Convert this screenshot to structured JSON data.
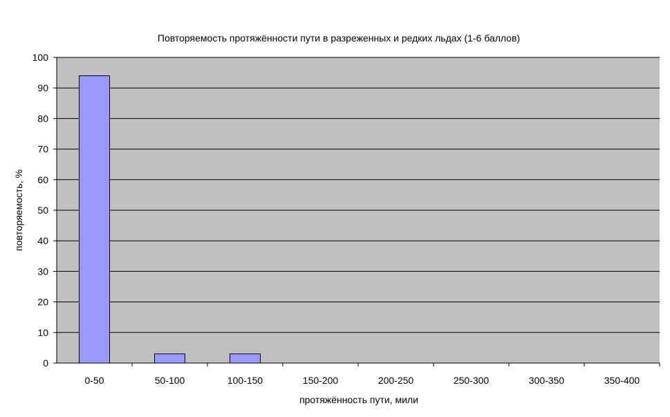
{
  "chart_data": {
    "type": "bar",
    "title": "Повторяемость протяжённости пути в разреженных и редких льдах (1-6 баллов)",
    "xlabel": "протяжённость пути, мили",
    "ylabel": "повторяемость, %",
    "categories": [
      "0-50",
      "50-100",
      "100-150",
      "150-200",
      "200-250",
      "250-300",
      "300-350",
      "350-400"
    ],
    "values": [
      94,
      3,
      3,
      0,
      0,
      0,
      0,
      0
    ],
    "ylim": [
      0,
      100
    ],
    "yticks": [
      "0",
      "10",
      "20",
      "30",
      "40",
      "50",
      "60",
      "70",
      "80",
      "90",
      "100"
    ],
    "grid": true,
    "legend": "none",
    "colors": {
      "plot_background": "#c0c0c0",
      "bar_fill": "#9999ff",
      "bar_stroke": "#000000",
      "grid": "#000000"
    }
  }
}
